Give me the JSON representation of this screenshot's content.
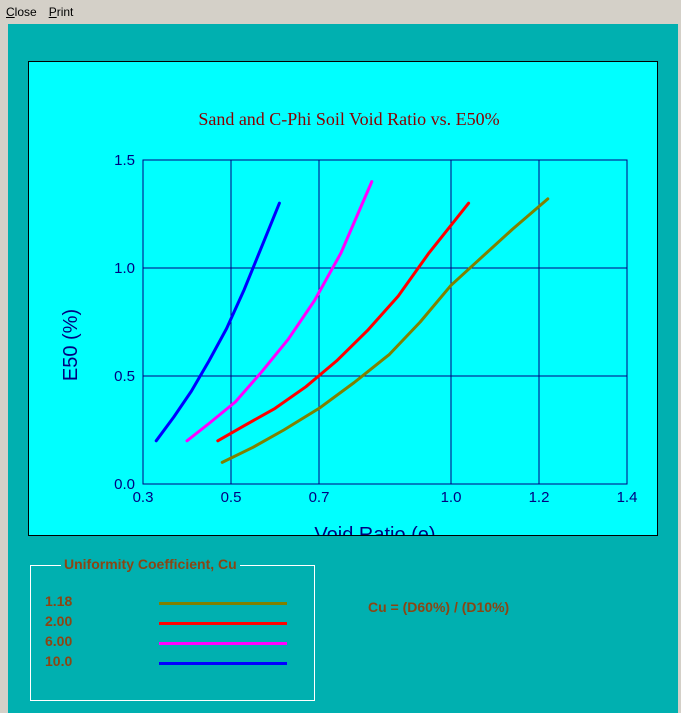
{
  "menu": {
    "close_label": "Close",
    "print_label": "Print"
  },
  "colors": {
    "background": "#00b0b0",
    "plot_bg": "#00ffff",
    "grid": "#000080",
    "text_brown": "#8b4513"
  },
  "legend": {
    "title": "Uniformity Coefficient, Cu",
    "items": [
      {
        "label": "1.18",
        "color": "#808000"
      },
      {
        "label": "2.00",
        "color": "#ff0000"
      },
      {
        "label": "6.00",
        "color": "#ff00ff"
      },
      {
        "label": "10.0",
        "color": "#0000ff"
      }
    ]
  },
  "formula": "Cu = (D60%) / (D10%)",
  "chart_data": {
    "type": "line",
    "title": "Sand and C-Phi Soil Void Ratio vs. E50%",
    "xlabel": "Void Ratio (e)",
    "ylabel": "E50 (%)",
    "xlim": [
      0.3,
      1.4
    ],
    "ylim": [
      0.0,
      1.5
    ],
    "xticks": [
      "0.3",
      "0.5",
      "0.7",
      "1.0",
      "1.2",
      "1.4"
    ],
    "yticks": [
      "0.0",
      "0.5",
      "1.0",
      "1.5"
    ],
    "grid": true,
    "series": [
      {
        "name": "1.18",
        "color": "#808000",
        "x": [
          0.48,
          0.55,
          0.62,
          0.7,
          0.78,
          0.86,
          0.93,
          1.0,
          1.07,
          1.14,
          1.22
        ],
        "y": [
          0.1,
          0.17,
          0.25,
          0.35,
          0.47,
          0.6,
          0.75,
          0.92,
          1.05,
          1.18,
          1.32
        ]
      },
      {
        "name": "2.00",
        "color": "#ff0000",
        "x": [
          0.47,
          0.53,
          0.6,
          0.67,
          0.74,
          0.81,
          0.88,
          0.95,
          1.04
        ],
        "y": [
          0.2,
          0.27,
          0.35,
          0.45,
          0.57,
          0.71,
          0.87,
          1.07,
          1.3
        ]
      },
      {
        "name": "6.00",
        "color": "#ff00ff",
        "x": [
          0.4,
          0.45,
          0.51,
          0.57,
          0.63,
          0.69,
          0.75,
          0.82
        ],
        "y": [
          0.2,
          0.28,
          0.38,
          0.52,
          0.67,
          0.85,
          1.07,
          1.4
        ]
      },
      {
        "name": "10.0",
        "color": "#0000ff",
        "x": [
          0.33,
          0.37,
          0.41,
          0.45,
          0.49,
          0.53,
          0.57,
          0.61
        ],
        "y": [
          0.2,
          0.31,
          0.43,
          0.57,
          0.72,
          0.9,
          1.1,
          1.3
        ]
      }
    ]
  }
}
